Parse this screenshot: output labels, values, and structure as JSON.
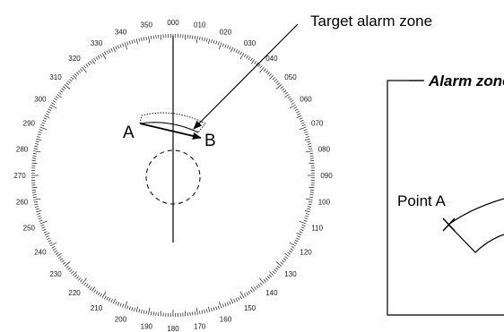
{
  "callout": {
    "label": "Target alarm zone"
  },
  "radar": {
    "degree_labels": [
      "000",
      "010",
      "020",
      "030",
      "040",
      "050",
      "060",
      "070",
      "080",
      "090",
      "100",
      "110",
      "120",
      "130",
      "140",
      "150",
      "160",
      "170",
      "180",
      "190",
      "200",
      "210",
      "220",
      "230",
      "240",
      "250",
      "260",
      "270",
      "280",
      "290",
      "300",
      "310",
      "320",
      "330",
      "340",
      "350"
    ],
    "point_a_label": "A",
    "point_b_label": "B"
  },
  "detail_box": {
    "title": "Alarm zone",
    "point_label": "Point A"
  }
}
